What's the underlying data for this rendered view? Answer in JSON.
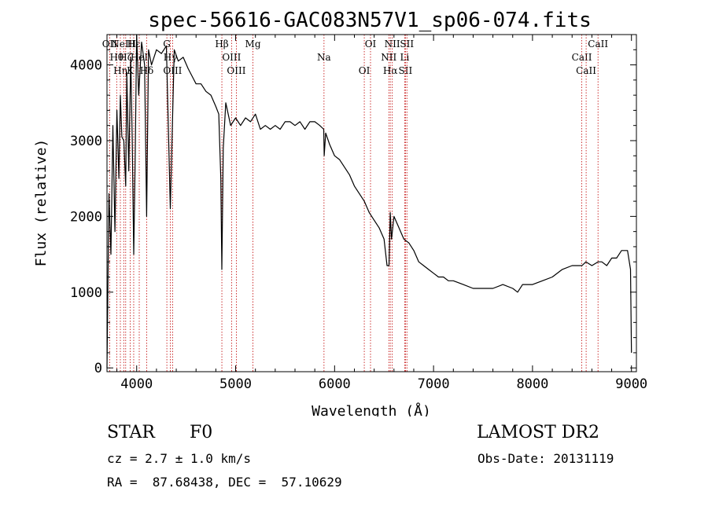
{
  "chart_data": {
    "type": "line",
    "title": "spec-56616-GAC083N57V1_sp06-074.fits",
    "xlabel": "Wavelength (Å)",
    "ylabel": "Flux (relative)",
    "xlim": [
      3700,
      9050
    ],
    "ylim": [
      -50,
      4400
    ],
    "xticks": [
      4000,
      5000,
      6000,
      7000,
      8000,
      9000
    ],
    "yticks": [
      0,
      1000,
      2000,
      3000,
      4000
    ],
    "series": [
      {
        "x": [
          3700,
          3720,
          3740,
          3760,
          3780,
          3800,
          3820,
          3835,
          3850,
          3870,
          3889,
          3900,
          3920,
          3940,
          3955,
          3970,
          3985,
          4000,
          4020,
          4050,
          4080,
          4101,
          4120,
          4150,
          4200,
          4250,
          4300,
          4340,
          4380,
          4420,
          4470,
          4520,
          4560,
          4600,
          4650,
          4700,
          4750,
          4800,
          4830,
          4850,
          4861,
          4875,
          4900,
          4950,
          5000,
          5050,
          5100,
          5150,
          5200,
          5250,
          5300,
          5350,
          5400,
          5450,
          5500,
          5550,
          5600,
          5650,
          5700,
          5750,
          5800,
          5850,
          5890,
          5895,
          5910,
          5950,
          6000,
          6050,
          6100,
          6150,
          6200,
          6250,
          6300,
          6350,
          6400,
          6450,
          6500,
          6530,
          6550,
          6563,
          6575,
          6600,
          6650,
          6700,
          6750,
          6800,
          6850,
          6900,
          6950,
          7000,
          7050,
          7100,
          7150,
          7200,
          7300,
          7400,
          7500,
          7600,
          7700,
          7800,
          7850,
          7900,
          8000,
          8100,
          8200,
          8300,
          8400,
          8500,
          8540,
          8600,
          8662,
          8700,
          8750,
          8800,
          8850,
          8900,
          8960,
          8990,
          9000
        ],
        "y": [
          0,
          2300,
          1500,
          3200,
          1800,
          3400,
          2500,
          3600,
          3050,
          3000,
          2400,
          3900,
          2600,
          4100,
          3000,
          1500,
          2800,
          4400,
          3600,
          4300,
          4000,
          2000,
          4200,
          4000,
          4200,
          4150,
          4250,
          2100,
          4200,
          4050,
          4100,
          3950,
          3850,
          3750,
          3750,
          3650,
          3600,
          3450,
          3350,
          2500,
          1300,
          2900,
          3500,
          3200,
          3300,
          3200,
          3300,
          3250,
          3350,
          3150,
          3200,
          3150,
          3200,
          3150,
          3250,
          3250,
          3200,
          3250,
          3150,
          3250,
          3250,
          3200,
          3150,
          2800,
          3100,
          2950,
          2800,
          2750,
          2650,
          2550,
          2400,
          2300,
          2200,
          2050,
          1950,
          1850,
          1700,
          1350,
          1350,
          2050,
          1700,
          2000,
          1850,
          1700,
          1650,
          1550,
          1400,
          1350,
          1300,
          1250,
          1200,
          1200,
          1150,
          1150,
          1100,
          1050,
          1050,
          1050,
          1100,
          1050,
          1000,
          1100,
          1100,
          1150,
          1200,
          1300,
          1350,
          1350,
          1400,
          1350,
          1400,
          1400,
          1350,
          1450,
          1450,
          1550,
          1550,
          1300,
          200
        ]
      }
    ],
    "lines": [
      {
        "wl": 3727,
        "label": "OII"
      },
      {
        "wl": 3798,
        "label": "Hθ"
      },
      {
        "wl": 3835,
        "label": "Hη"
      },
      {
        "wl": 3869,
        "label": "NeIII"
      },
      {
        "wl": 3889,
        "label": "Hζ"
      },
      {
        "wl": 3934,
        "label": "K"
      },
      {
        "wl": 3970,
        "label": "Hε"
      },
      {
        "wl": 4026,
        "label": "HeI"
      },
      {
        "wl": 4101,
        "label": "Hδ"
      },
      {
        "wl": 4305,
        "label": "G"
      },
      {
        "wl": 4340,
        "label": "Hγ"
      },
      {
        "wl": 4363,
        "label": "OIII"
      },
      {
        "wl": 4861,
        "label": "Hβ"
      },
      {
        "wl": 4959,
        "label": "OIII"
      },
      {
        "wl": 5007,
        "label": "OIII"
      },
      {
        "wl": 5175,
        "label": "Mg"
      },
      {
        "wl": 5893,
        "label": "Na"
      },
      {
        "wl": 6300,
        "label": "OI"
      },
      {
        "wl": 6363,
        "label": "OI"
      },
      {
        "wl": 6548,
        "label": "NII"
      },
      {
        "wl": 6563,
        "label": "Hα"
      },
      {
        "wl": 6583,
        "label": "NII"
      },
      {
        "wl": 6708,
        "label": "Li"
      },
      {
        "wl": 6716,
        "label": "SII"
      },
      {
        "wl": 6731,
        "label": "SII"
      },
      {
        "wl": 8498,
        "label": "CaII"
      },
      {
        "wl": 8542,
        "label": "CaII"
      },
      {
        "wl": 8662,
        "label": "CaII"
      }
    ]
  },
  "info": {
    "class_label": "STAR",
    "subclass_label": "F0",
    "survey": "LAMOST DR2",
    "redshift": "cz = 2.7 ± 1.0 km/s",
    "obs_date": "Obs-Date: 20131119",
    "coords": "RA =  87.68438, DEC =  57.10629"
  }
}
